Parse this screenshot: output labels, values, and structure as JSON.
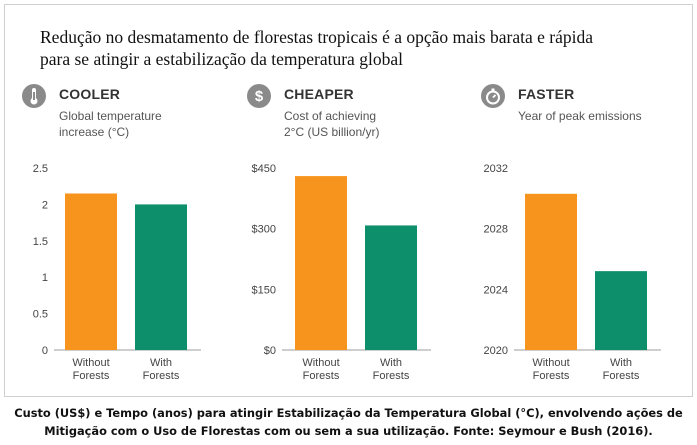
{
  "headline": {
    "line1": "Redução no desmatamento de florestas tropicais é a opção mais barata e rápida",
    "line2": "para se atingir a estabilização da temperatura global"
  },
  "panels": [
    {
      "icon": "thermometer-icon",
      "title": "COOLER",
      "subtitle": "Global temperature\nincrease (°C)"
    },
    {
      "icon": "dollar-icon",
      "title": "CHEAPER",
      "subtitle": "Cost of achieving\n2°C (US billion/yr)"
    },
    {
      "icon": "stopwatch-icon",
      "title": "FASTER",
      "subtitle": "Year of peak emissions"
    }
  ],
  "colors": {
    "without_forests": "#F7941D",
    "with_forests": "#0E8F6B",
    "baseline": "#9e9e9e",
    "icon": "#8a8a8a"
  },
  "chart_data": [
    {
      "type": "bar",
      "title": "COOLER",
      "ylabel": "Global temperature increase (°C)",
      "categories": [
        "Without\nForests",
        "With\nForests"
      ],
      "values": [
        2.15,
        2.0
      ],
      "ylim": [
        0,
        2.5
      ],
      "yticks": [
        0,
        0.5,
        1,
        1.5,
        2,
        2.5
      ],
      "ytick_labels": [
        "0",
        "0.5",
        "1",
        "1.5",
        "2",
        "2.5"
      ],
      "grid": false
    },
    {
      "type": "bar",
      "title": "CHEAPER",
      "ylabel": "Cost of achieving 2°C (US billion/yr)",
      "categories": [
        "Without\nForests",
        "With\nForests"
      ],
      "values": [
        430,
        308
      ],
      "ylim": [
        0,
        450
      ],
      "yticks": [
        0,
        150,
        300,
        450
      ],
      "ytick_labels": [
        "$0",
        "$150",
        "$300",
        "$450"
      ],
      "grid": false
    },
    {
      "type": "bar",
      "title": "FASTER",
      "ylabel": "Year of peak emissions",
      "categories": [
        "Without\nForests",
        "With\nForests"
      ],
      "values": [
        2030.3,
        2025.2
      ],
      "ylim": [
        2020,
        2032
      ],
      "yticks": [
        2020,
        2024,
        2028,
        2032
      ],
      "ytick_labels": [
        "2020",
        "2024",
        "2028",
        "2032"
      ],
      "grid": false
    }
  ],
  "caption": {
    "line1": "Custo (US$) e Tempo (anos) para atingir  Estabilização da Temperatura Global (°C), envolvendo ações de",
    "line2": "Mitigação com o Uso de Florestas com ou sem a sua utilização. Fonte: Seymour e Bush (2016)."
  }
}
